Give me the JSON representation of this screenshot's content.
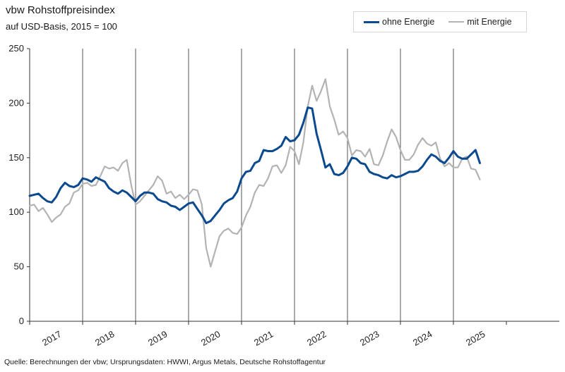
{
  "header": {
    "title": "vbw Rohstoffpreisindex",
    "subtitle": "auf USD-Basis, 2015 = 100"
  },
  "footer": {
    "source": "Quelle: Berechnungen der vbw; Ursprungsdaten: HWWI, Argus Metals, Deutsche Rohstoffagentur"
  },
  "colors": {
    "ohne_energie": "#0b4a8f",
    "mit_energie": "#b3b3b3",
    "axis": "#333333",
    "grid": "#555555"
  },
  "chart_data": {
    "type": "line",
    "title": "vbw Rohstoffpreisindex",
    "subtitle": "auf USD-Basis, 2015 = 100",
    "xlabel": "",
    "ylabel": "",
    "ylim": [
      0,
      250
    ],
    "yticks": [
      0,
      50,
      100,
      150,
      200,
      250
    ],
    "x_labels": [
      "2017",
      "2018",
      "2019",
      "2020",
      "2021",
      "2022",
      "2023",
      "2024",
      "2025"
    ],
    "x_start": "2017-01",
    "months_total": 120,
    "legend_position": "top-right",
    "grid": "vertical lines at year boundaries",
    "series": [
      {
        "name": "ohne Energie",
        "values": [
          115,
          116,
          117,
          113,
          110,
          109,
          114,
          122,
          127,
          124,
          123,
          125,
          131,
          130,
          128,
          132,
          130,
          128,
          122,
          119,
          117,
          120,
          118,
          114,
          110,
          115,
          118,
          118,
          117,
          112,
          110,
          109,
          106,
          105,
          102,
          105,
          108,
          109,
          103,
          97,
          90,
          92,
          97,
          102,
          108,
          111,
          113,
          119,
          131,
          137,
          138,
          145,
          147,
          157,
          156,
          156,
          158,
          161,
          169,
          165,
          166,
          171,
          182,
          196,
          195,
          172,
          157,
          141,
          144,
          135,
          134,
          136,
          142,
          150,
          149,
          145,
          144,
          137,
          135,
          134,
          132,
          131,
          134,
          132,
          133,
          135,
          137,
          137,
          138,
          142,
          148,
          153,
          151,
          147,
          145,
          150,
          156,
          151,
          149,
          149,
          153,
          157,
          145
        ]
      },
      {
        "name": "mit Energie",
        "values": [
          106,
          107,
          101,
          104,
          98,
          91,
          95,
          98,
          105,
          108,
          118,
          120,
          126,
          127,
          124,
          125,
          133,
          142,
          140,
          141,
          138,
          145,
          148,
          125,
          107,
          110,
          115,
          120,
          125,
          133,
          129,
          117,
          119,
          113,
          116,
          112,
          116,
          121,
          120,
          107,
          67,
          50,
          64,
          78,
          83,
          85,
          81,
          80,
          86,
          97,
          105,
          118,
          125,
          124,
          131,
          142,
          143,
          136,
          143,
          160,
          156,
          144,
          164,
          197,
          216,
          202,
          211,
          222,
          197,
          185,
          171,
          174,
          168,
          152,
          157,
          156,
          151,
          158,
          144,
          143,
          152,
          165,
          176,
          169,
          157,
          148,
          148,
          153,
          162,
          168,
          163,
          161,
          164,
          149,
          142,
          145,
          141,
          141,
          149,
          151,
          140,
          139,
          130
        ]
      }
    ]
  }
}
